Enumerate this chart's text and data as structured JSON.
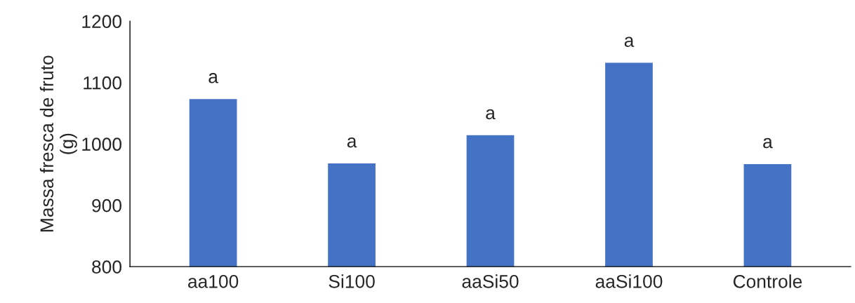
{
  "chart_data": {
    "type": "bar",
    "ylabel": "Massa fresca de fruto\n(g)",
    "categories": [
      "aa100",
      "Si100",
      "aaSi50",
      "aaSi100",
      "Controle"
    ],
    "values": [
      1074,
      969,
      1015,
      1133,
      968
    ],
    "color": "#4472c4",
    "ylim": [
      800,
      1200
    ],
    "yticks": [
      800,
      900,
      1000,
      1100,
      1200
    ],
    "grid": false,
    "annotations": [
      {
        "text": "a",
        "x": "aa100",
        "y": 1074
      },
      {
        "text": "a",
        "x": "Si100",
        "y": 969
      },
      {
        "text": "a",
        "x": "aaSi50",
        "y": 1015
      },
      {
        "text": "a",
        "x": "aaSi100",
        "y": 1133
      },
      {
        "text": "a",
        "x": "Controle",
        "y": 968
      }
    ]
  }
}
